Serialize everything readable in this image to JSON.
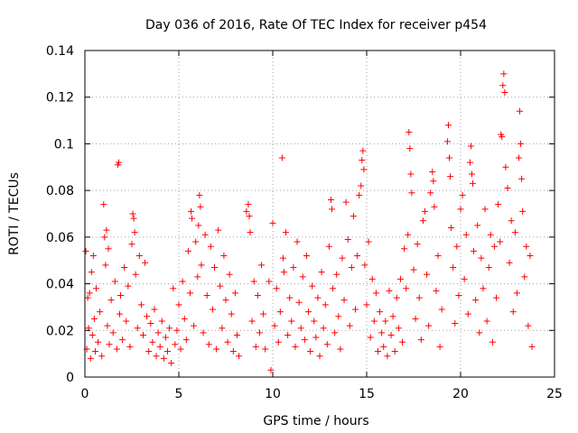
{
  "chart_data": {
    "type": "scatter",
    "title": "Day 036 of 2016, Rate Of TEC Index for receiver p454",
    "xlabel": "GPS time / hours",
    "ylabel": "ROTI / TECUs",
    "xlim": [
      0,
      25
    ],
    "ylim": [
      0,
      0.14
    ],
    "x_ticks": [
      0,
      5,
      10,
      15,
      20,
      25
    ],
    "x_tick_labels": [
      "0",
      "5",
      "10",
      "15",
      "20",
      "25"
    ],
    "y_ticks": [
      0,
      0.02,
      0.04,
      0.06,
      0.08,
      0.1,
      0.12,
      0.14
    ],
    "y_tick_labels": [
      "0",
      "0.02",
      "0.04",
      "0.06",
      "0.08",
      "0.1",
      "0.12",
      "0.14"
    ],
    "grid": true,
    "marker": "plus",
    "color": "#ff0000",
    "series": [
      {
        "name": "ROTI",
        "points": [
          [
            0.05,
            0.054
          ],
          [
            0.1,
            0.012
          ],
          [
            0.15,
            0.034
          ],
          [
            0.2,
            0.021
          ],
          [
            0.25,
            0.036
          ],
          [
            0.3,
            0.008
          ],
          [
            0.35,
            0.045
          ],
          [
            0.4,
            0.018
          ],
          [
            0.45,
            0.052
          ],
          [
            0.5,
            0.025
          ],
          [
            0.55,
            0.011
          ],
          [
            0.6,
            0.038
          ],
          [
            0.7,
            0.015
          ],
          [
            0.8,
            0.028
          ],
          [
            0.9,
            0.009
          ],
          [
            1.0,
            0.074
          ],
          [
            1.05,
            0.06
          ],
          [
            1.1,
            0.048
          ],
          [
            1.15,
            0.063
          ],
          [
            1.2,
            0.022
          ],
          [
            1.25,
            0.055
          ],
          [
            1.3,
            0.014
          ],
          [
            1.4,
            0.033
          ],
          [
            1.5,
            0.019
          ],
          [
            1.6,
            0.041
          ],
          [
            1.7,
            0.012
          ],
          [
            1.75,
            0.091
          ],
          [
            1.8,
            0.092
          ],
          [
            1.85,
            0.027
          ],
          [
            1.9,
            0.035
          ],
          [
            2.0,
            0.016
          ],
          [
            2.1,
            0.047
          ],
          [
            2.2,
            0.024
          ],
          [
            2.3,
            0.039
          ],
          [
            2.4,
            0.013
          ],
          [
            2.5,
            0.057
          ],
          [
            2.55,
            0.07
          ],
          [
            2.6,
            0.068
          ],
          [
            2.65,
            0.062
          ],
          [
            2.7,
            0.044
          ],
          [
            2.8,
            0.021
          ],
          [
            2.9,
            0.052
          ],
          [
            3.0,
            0.031
          ],
          [
            3.1,
            0.018
          ],
          [
            3.2,
            0.049
          ],
          [
            3.3,
            0.026
          ],
          [
            3.4,
            0.011
          ],
          [
            3.5,
            0.023
          ],
          [
            3.6,
            0.015
          ],
          [
            3.7,
            0.029
          ],
          [
            3.8,
            0.009
          ],
          [
            3.9,
            0.019
          ],
          [
            4.0,
            0.013
          ],
          [
            4.1,
            0.024
          ],
          [
            4.2,
            0.008
          ],
          [
            4.3,
            0.017
          ],
          [
            4.4,
            0.011
          ],
          [
            4.5,
            0.021
          ],
          [
            4.6,
            0.006
          ],
          [
            4.7,
            0.038
          ],
          [
            4.8,
            0.014
          ],
          [
            4.9,
            0.02
          ],
          [
            5.0,
            0.031
          ],
          [
            5.1,
            0.012
          ],
          [
            5.2,
            0.041
          ],
          [
            5.3,
            0.025
          ],
          [
            5.4,
            0.016
          ],
          [
            5.5,
            0.054
          ],
          [
            5.6,
            0.036
          ],
          [
            5.65,
            0.071
          ],
          [
            5.7,
            0.068
          ],
          [
            5.8,
            0.022
          ],
          [
            5.9,
            0.058
          ],
          [
            6.0,
            0.043
          ],
          [
            6.05,
            0.065
          ],
          [
            6.1,
            0.078
          ],
          [
            6.15,
            0.073
          ],
          [
            6.2,
            0.048
          ],
          [
            6.3,
            0.019
          ],
          [
            6.4,
            0.061
          ],
          [
            6.5,
            0.035
          ],
          [
            6.6,
            0.014
          ],
          [
            6.7,
            0.056
          ],
          [
            6.8,
            0.029
          ],
          [
            6.9,
            0.047
          ],
          [
            7.0,
            0.012
          ],
          [
            7.1,
            0.063
          ],
          [
            7.2,
            0.039
          ],
          [
            7.3,
            0.021
          ],
          [
            7.4,
            0.052
          ],
          [
            7.5,
            0.033
          ],
          [
            7.6,
            0.015
          ],
          [
            7.7,
            0.044
          ],
          [
            7.8,
            0.027
          ],
          [
            7.9,
            0.011
          ],
          [
            8.0,
            0.036
          ],
          [
            8.1,
            0.018
          ],
          [
            8.2,
            0.009
          ],
          [
            8.6,
            0.071
          ],
          [
            8.7,
            0.074
          ],
          [
            8.75,
            0.069
          ],
          [
            8.8,
            0.062
          ],
          [
            8.9,
            0.024
          ],
          [
            9.0,
            0.041
          ],
          [
            9.1,
            0.013
          ],
          [
            9.2,
            0.035
          ],
          [
            9.3,
            0.019
          ],
          [
            9.4,
            0.048
          ],
          [
            9.5,
            0.027
          ],
          [
            9.6,
            0.012
          ],
          [
            9.8,
            0.041
          ],
          [
            9.9,
            0.003
          ],
          [
            10.0,
            0.066
          ],
          [
            10.1,
            0.022
          ],
          [
            10.2,
            0.038
          ],
          [
            10.3,
            0.015
          ],
          [
            10.4,
            0.028
          ],
          [
            10.5,
            0.094
          ],
          [
            10.55,
            0.051
          ],
          [
            10.6,
            0.045
          ],
          [
            10.7,
            0.062
          ],
          [
            10.8,
            0.018
          ],
          [
            10.9,
            0.034
          ],
          [
            11.0,
            0.024
          ],
          [
            11.1,
            0.047
          ],
          [
            11.2,
            0.013
          ],
          [
            11.3,
            0.058
          ],
          [
            11.4,
            0.032
          ],
          [
            11.5,
            0.021
          ],
          [
            11.6,
            0.043
          ],
          [
            11.7,
            0.016
          ],
          [
            11.8,
            0.052
          ],
          [
            11.9,
            0.028
          ],
          [
            12.0,
            0.011
          ],
          [
            12.1,
            0.039
          ],
          [
            12.2,
            0.024
          ],
          [
            12.3,
            0.017
          ],
          [
            12.4,
            0.034
          ],
          [
            12.5,
            0.009
          ],
          [
            12.6,
            0.045
          ],
          [
            12.7,
            0.021
          ],
          [
            12.8,
            0.031
          ],
          [
            12.9,
            0.014
          ],
          [
            13.0,
            0.056
          ],
          [
            13.1,
            0.076
          ],
          [
            13.15,
            0.072
          ],
          [
            13.2,
            0.038
          ],
          [
            13.3,
            0.019
          ],
          [
            13.4,
            0.044
          ],
          [
            13.5,
            0.026
          ],
          [
            13.6,
            0.012
          ],
          [
            13.7,
            0.051
          ],
          [
            13.8,
            0.033
          ],
          [
            13.9,
            0.075
          ],
          [
            14.0,
            0.059
          ],
          [
            14.1,
            0.022
          ],
          [
            14.2,
            0.047
          ],
          [
            14.3,
            0.069
          ],
          [
            14.4,
            0.029
          ],
          [
            14.5,
            0.052
          ],
          [
            14.6,
            0.078
          ],
          [
            14.7,
            0.082
          ],
          [
            14.75,
            0.093
          ],
          [
            14.8,
            0.097
          ],
          [
            14.85,
            0.089
          ],
          [
            14.9,
            0.048
          ],
          [
            15.0,
            0.031
          ],
          [
            15.1,
            0.058
          ],
          [
            15.2,
            0.017
          ],
          [
            15.3,
            0.042
          ],
          [
            15.4,
            0.024
          ],
          [
            15.5,
            0.036
          ],
          [
            15.6,
            0.011
          ],
          [
            15.7,
            0.028
          ],
          [
            15.8,
            0.019
          ],
          [
            15.9,
            0.013
          ],
          [
            16.0,
            0.024
          ],
          [
            16.1,
            0.009
          ],
          [
            16.2,
            0.037
          ],
          [
            16.3,
            0.018
          ],
          [
            16.4,
            0.026
          ],
          [
            16.5,
            0.011
          ],
          [
            16.6,
            0.034
          ],
          [
            16.7,
            0.021
          ],
          [
            16.8,
            0.042
          ],
          [
            16.9,
            0.015
          ],
          [
            17.0,
            0.055
          ],
          [
            17.1,
            0.038
          ],
          [
            17.2,
            0.061
          ],
          [
            17.25,
            0.105
          ],
          [
            17.3,
            0.098
          ],
          [
            17.35,
            0.087
          ],
          [
            17.4,
            0.079
          ],
          [
            17.5,
            0.046
          ],
          [
            17.6,
            0.025
          ],
          [
            17.7,
            0.057
          ],
          [
            17.8,
            0.034
          ],
          [
            17.9,
            0.016
          ],
          [
            18.0,
            0.067
          ],
          [
            18.1,
            0.071
          ],
          [
            18.2,
            0.044
          ],
          [
            18.3,
            0.022
          ],
          [
            18.4,
            0.079
          ],
          [
            18.5,
            0.088
          ],
          [
            18.55,
            0.084
          ],
          [
            18.6,
            0.073
          ],
          [
            18.7,
            0.037
          ],
          [
            18.8,
            0.052
          ],
          [
            18.9,
            0.013
          ],
          [
            19.0,
            0.029
          ],
          [
            19.3,
            0.101
          ],
          [
            19.35,
            0.108
          ],
          [
            19.4,
            0.094
          ],
          [
            19.45,
            0.086
          ],
          [
            19.5,
            0.064
          ],
          [
            19.6,
            0.047
          ],
          [
            19.7,
            0.023
          ],
          [
            19.8,
            0.056
          ],
          [
            19.9,
            0.035
          ],
          [
            20.0,
            0.072
          ],
          [
            20.1,
            0.078
          ],
          [
            20.2,
            0.042
          ],
          [
            20.3,
            0.061
          ],
          [
            20.4,
            0.027
          ],
          [
            20.5,
            0.092
          ],
          [
            20.55,
            0.099
          ],
          [
            20.6,
            0.087
          ],
          [
            20.65,
            0.083
          ],
          [
            20.7,
            0.054
          ],
          [
            20.8,
            0.033
          ],
          [
            20.9,
            0.065
          ],
          [
            21.0,
            0.019
          ],
          [
            21.1,
            0.051
          ],
          [
            21.2,
            0.038
          ],
          [
            21.3,
            0.072
          ],
          [
            21.4,
            0.024
          ],
          [
            21.5,
            0.047
          ],
          [
            21.6,
            0.061
          ],
          [
            21.7,
            0.015
          ],
          [
            21.8,
            0.056
          ],
          [
            21.9,
            0.034
          ],
          [
            22.0,
            0.074
          ],
          [
            22.1,
            0.058
          ],
          [
            22.15,
            0.104
          ],
          [
            22.2,
            0.103
          ],
          [
            22.25,
            0.125
          ],
          [
            22.3,
            0.13
          ],
          [
            22.35,
            0.122
          ],
          [
            22.4,
            0.09
          ],
          [
            22.5,
            0.081
          ],
          [
            22.6,
            0.049
          ],
          [
            22.7,
            0.067
          ],
          [
            22.8,
            0.028
          ],
          [
            22.9,
            0.062
          ],
          [
            23.0,
            0.036
          ],
          [
            23.1,
            0.094
          ],
          [
            23.15,
            0.114
          ],
          [
            23.2,
            0.1
          ],
          [
            23.25,
            0.085
          ],
          [
            23.3,
            0.071
          ],
          [
            23.4,
            0.043
          ],
          [
            23.5,
            0.056
          ],
          [
            23.6,
            0.022
          ],
          [
            23.7,
            0.052
          ],
          [
            23.8,
            0.013
          ]
        ]
      }
    ]
  }
}
